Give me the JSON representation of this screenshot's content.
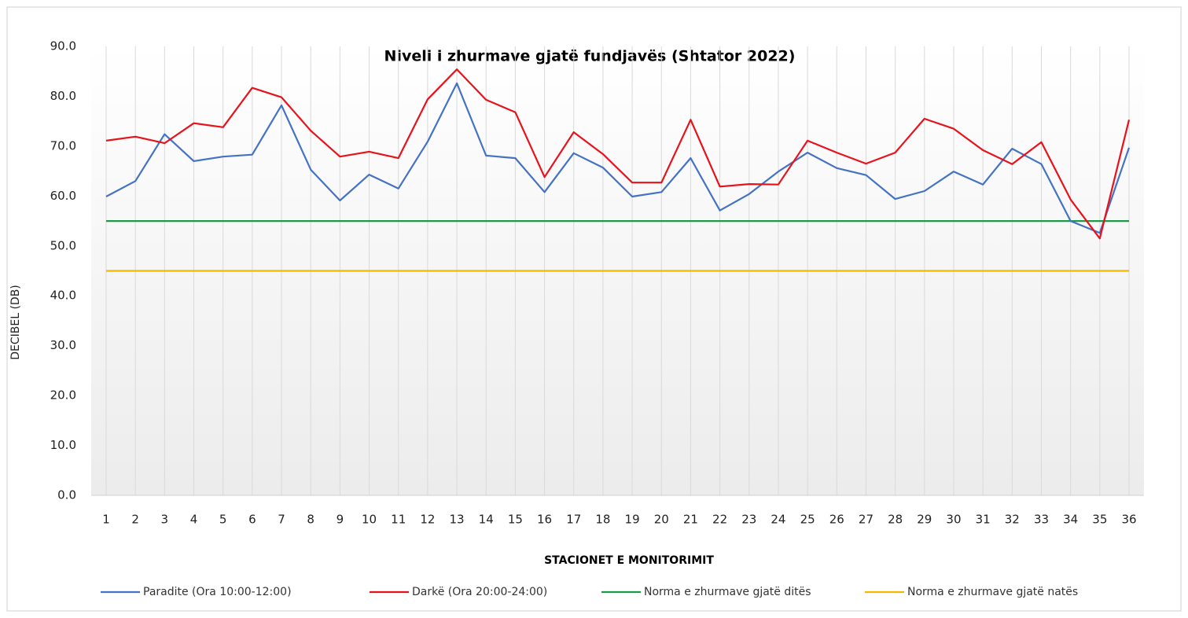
{
  "chart_data": {
    "type": "line",
    "title": "Niveli  i zhurmave  gjatë  fundjavës  (Shtator  2022)",
    "x_label": "STACIONET E MONITORIMIT",
    "y_label": "DECIBEL (DB)",
    "categories": [
      "1",
      "2",
      "3",
      "4",
      "5",
      "6",
      "7",
      "8",
      "9",
      "10",
      "11",
      "12",
      "13",
      "14",
      "15",
      "16",
      "17",
      "18",
      "19",
      "20",
      "21",
      "22",
      "23",
      "24",
      "25",
      "26",
      "27",
      "28",
      "29",
      "30",
      "31",
      "32",
      "33",
      "34",
      "35",
      "36"
    ],
    "series": [
      {
        "name": "Paradite  (Ora 10:00-12:00)",
        "color": "#4472c4",
        "values": [
          59.9,
          63.0,
          72.4,
          67.0,
          67.9,
          68.3,
          78.2,
          65.3,
          59.1,
          64.3,
          61.5,
          70.9,
          82.6,
          68.1,
          67.6,
          60.8,
          68.6,
          65.7,
          59.9,
          60.8,
          67.6,
          57.1,
          60.4,
          64.9,
          68.7,
          65.6,
          64.2,
          59.4,
          61.0,
          64.9,
          62.3,
          69.5,
          66.4,
          55.0,
          52.6,
          69.7
        ]
      },
      {
        "name": "Darkë (Ora 20:00-24:00)",
        "color": "#e8121b",
        "values": [
          71.1,
          71.9,
          70.6,
          74.6,
          73.8,
          81.7,
          79.8,
          73.1,
          67.9,
          68.9,
          67.6,
          79.4,
          85.4,
          79.3,
          76.8,
          63.8,
          72.8,
          68.4,
          62.7,
          62.7,
          75.3,
          61.9,
          62.4,
          62.3,
          71.1,
          68.7,
          66.5,
          68.7,
          75.5,
          73.5,
          69.2,
          66.4,
          70.8,
          59.3,
          51.5,
          75.3
        ]
      },
      {
        "name": "Norma e zhurmave gjatë ditës",
        "color": "#1a9b47",
        "values": [
          55,
          55,
          55,
          55,
          55,
          55,
          55,
          55,
          55,
          55,
          55,
          55,
          55,
          55,
          55,
          55,
          55,
          55,
          55,
          55,
          55,
          55,
          55,
          55,
          55,
          55,
          55,
          55,
          55,
          55,
          55,
          55,
          55,
          55,
          55,
          55
        ]
      },
      {
        "name": "Norma e zhurmave gjatë natës",
        "color": "#f5b800",
        "values": [
          45,
          45,
          45,
          45,
          45,
          45,
          45,
          45,
          45,
          45,
          45,
          45,
          45,
          45,
          45,
          45,
          45,
          45,
          45,
          45,
          45,
          45,
          45,
          45,
          45,
          45,
          45,
          45,
          45,
          45,
          45,
          45,
          45,
          45,
          45,
          45
        ]
      }
    ],
    "ylim": [
      0,
      90
    ],
    "yticks": [
      {
        "value": 0,
        "label": "0.0"
      },
      {
        "value": 10,
        "label": "10.0"
      },
      {
        "value": 20,
        "label": "20.0"
      },
      {
        "value": 30,
        "label": "30.0"
      },
      {
        "value": 40,
        "label": "40.0"
      },
      {
        "value": 50,
        "label": "50.0"
      },
      {
        "value": 60,
        "label": "60.0"
      },
      {
        "value": 70,
        "label": "70.0"
      },
      {
        "value": 80,
        "label": "80.0"
      },
      {
        "value": 90,
        "label": "90.0"
      }
    ],
    "grid": "vertical",
    "legend": "bottom"
  }
}
